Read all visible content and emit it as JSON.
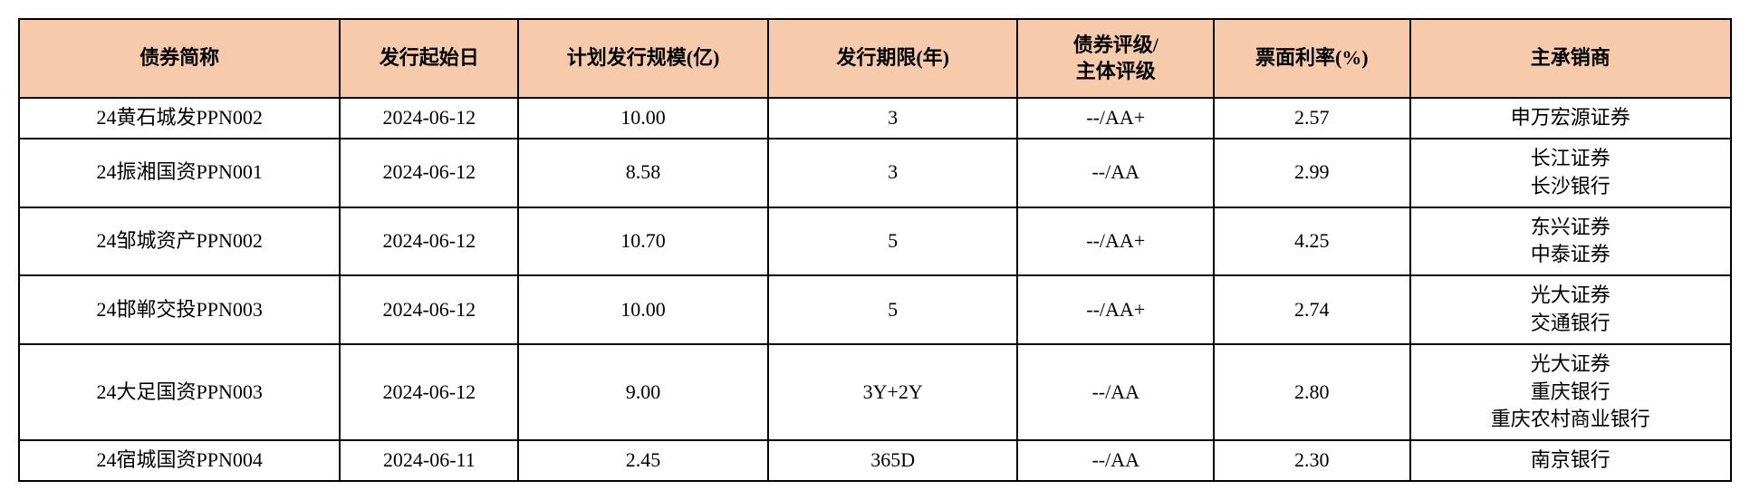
{
  "table": {
    "type": "table",
    "header_bg_color": "#f7caac",
    "cell_bg_color": "#ffffff",
    "border_color": "#000000",
    "border_width": 2,
    "header_fontsize": 22,
    "cell_fontsize": 22,
    "header_font_weight": "bold",
    "columns": [
      {
        "label": "债券简称",
        "width": "18%",
        "align": "center"
      },
      {
        "label": "发行起始日",
        "width": "10%",
        "align": "center"
      },
      {
        "label": "计划发行规模(亿)",
        "width": "14%",
        "align": "center"
      },
      {
        "label": "发行期限(年)",
        "width": "14%",
        "align": "center"
      },
      {
        "label": "债券评级/\n主体评级",
        "width": "11%",
        "align": "center"
      },
      {
        "label": "票面利率(%)",
        "width": "11%",
        "align": "center"
      },
      {
        "label": "主承销商",
        "width": "18%",
        "align": "center"
      }
    ],
    "rows": [
      {
        "name": "24黄石城发PPN002",
        "date": "2024-06-12",
        "scale": "10.00",
        "term": "3",
        "rating": "--/AA+",
        "rate": "2.57",
        "underwriter": "申万宏源证券"
      },
      {
        "name": "24振湘国资PPN001",
        "date": "2024-06-12",
        "scale": "8.58",
        "term": "3",
        "rating": "--/AA",
        "rate": "2.99",
        "underwriter": "长江证券\n长沙银行"
      },
      {
        "name": "24邹城资产PPN002",
        "date": "2024-06-12",
        "scale": "10.70",
        "term": "5",
        "rating": "--/AA+",
        "rate": "4.25",
        "underwriter": "东兴证券\n中泰证券"
      },
      {
        "name": "24邯郸交投PPN003",
        "date": "2024-06-12",
        "scale": "10.00",
        "term": "5",
        "rating": "--/AA+",
        "rate": "2.74",
        "underwriter": "光大证券\n交通银行"
      },
      {
        "name": "24大足国资PPN003",
        "date": "2024-06-12",
        "scale": "9.00",
        "term": "3Y+2Y",
        "rating": "--/AA",
        "rate": "2.80",
        "underwriter": "光大证券\n重庆银行\n重庆农村商业银行"
      },
      {
        "name": "24宿城国资PPN004",
        "date": "2024-06-11",
        "scale": "2.45",
        "term": "365D",
        "rating": "--/AA",
        "rate": "2.30",
        "underwriter": "南京银行"
      }
    ]
  }
}
